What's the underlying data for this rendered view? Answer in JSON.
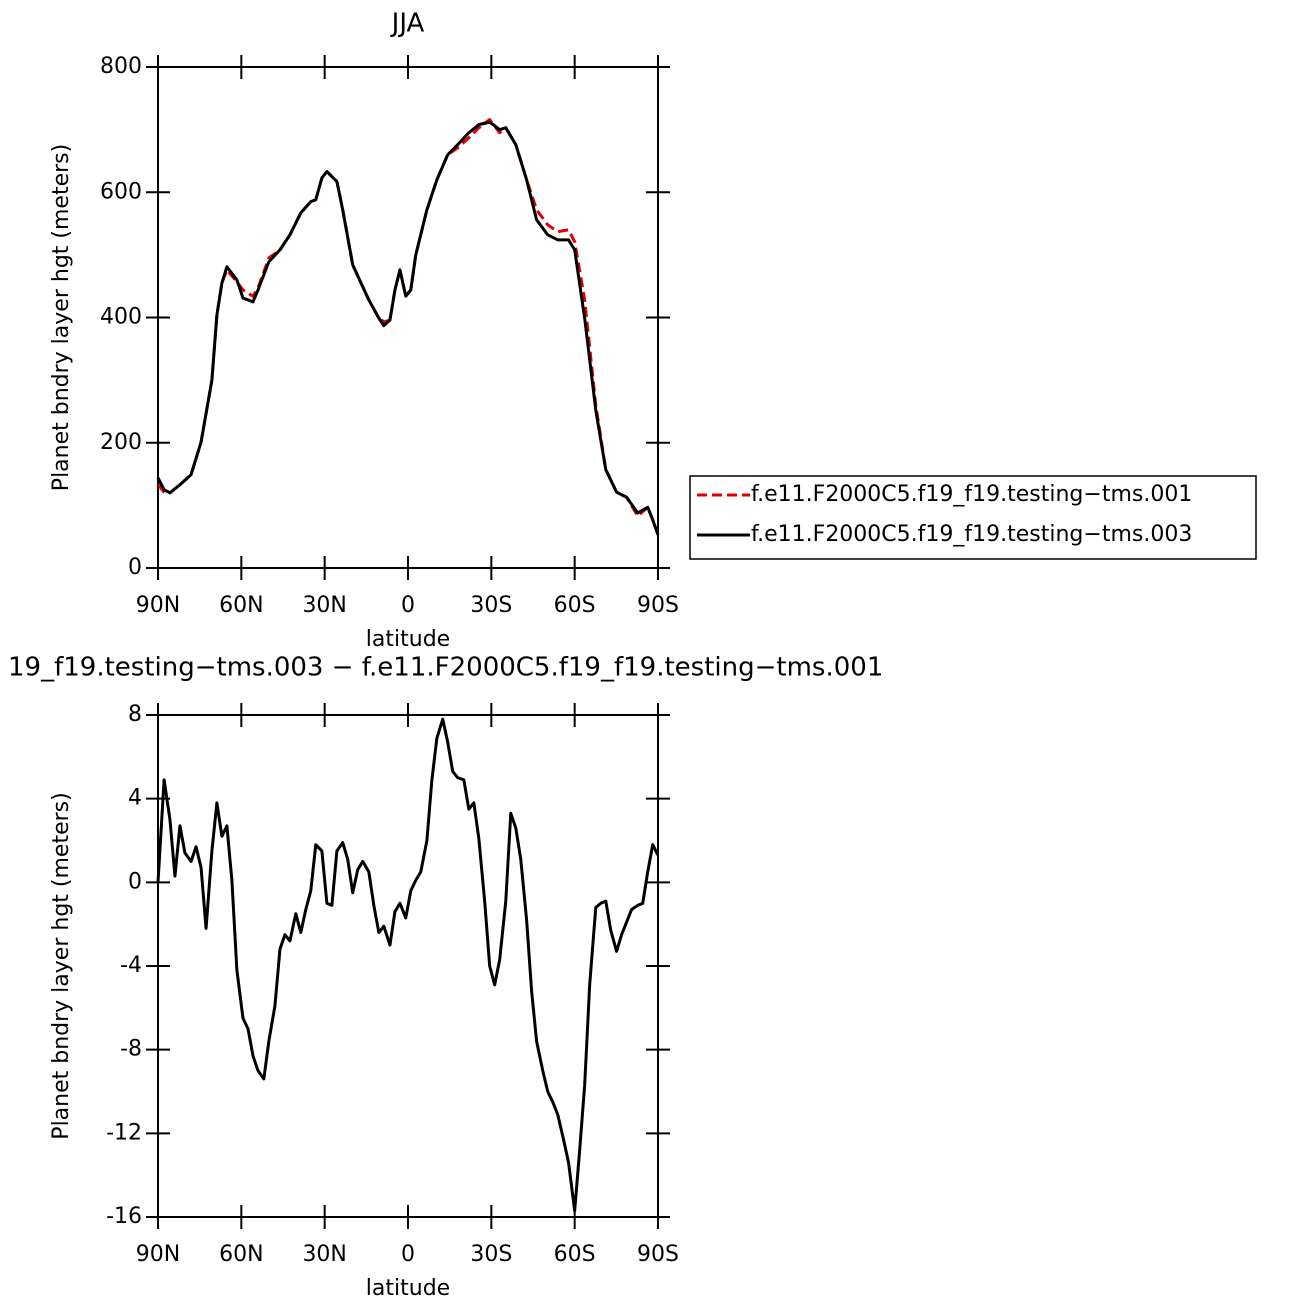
{
  "chart_data": [
    {
      "type": "line",
      "title": "JJA",
      "xlabel": "latitude",
      "ylabel": "Planet bndry layer hgt (meters)",
      "xlim": [
        90,
        -90
      ],
      "ylim": [
        0,
        800
      ],
      "xticks": [
        {
          "value": 90,
          "label": "90N"
        },
        {
          "value": 60,
          "label": "60N"
        },
        {
          "value": 30,
          "label": "30N"
        },
        0,
        {
          "value": -30,
          "label": "30S"
        },
        {
          "value": -60,
          "label": "60S"
        },
        {
          "value": -90,
          "label": "90S"
        }
      ],
      "yticks": [
        0,
        200,
        400,
        600,
        800
      ],
      "legend": "right",
      "x": [
        90,
        87.8,
        85.7,
        82.1,
        78.1,
        74.5,
        70.6,
        68.8,
        67,
        65.2,
        61.6,
        59.4,
        55.8,
        54,
        50.1,
        46.1,
        42.5,
        38.6,
        35,
        33.2,
        31,
        29.2,
        25.6,
        23.5,
        19.9,
        14.1,
        10.5,
        8.7,
        6.5,
        4.7,
        2.9,
        0.8,
        -1,
        -2.8,
        -6.8,
        -10.4,
        -14.3,
        -17.9,
        -21.9,
        -25.5,
        -29.4,
        -33,
        -35.2,
        -38.8,
        -42.7,
        -46.3,
        -50.3,
        -53.9,
        -57.8,
        -60,
        -63.6,
        -67.6,
        -71.2,
        -75.1,
        -78.7,
        -82.7,
        -86.3,
        -88.1,
        -90
      ],
      "series": [
        {
          "name": "f.e11.F2000C5.f19_f19.testing−tms.001",
          "color": "#e00000",
          "dash": true,
          "values": [
            133,
            121,
            120,
            133,
            149,
            201,
            300,
            404,
            455,
            476,
            457,
            444,
            434,
            447,
            495,
            508,
            532,
            567,
            585,
            588,
            623,
            633,
            617,
            572,
            484,
            428,
            399,
            393,
            396,
            444,
            476,
            434,
            444,
            500,
            572,
            620,
            660,
            671,
            687,
            703,
            716,
            695,
            703,
            676,
            620,
            572,
            548,
            537,
            540,
            521,
            428,
            260,
            157,
            121,
            113,
            83,
            97,
            77,
            53
          ]
        },
        {
          "name": "f.e11.F2000C5.f19_f19.testing−tms.003",
          "color": "#000000",
          "dash": false,
          "values": [
            144,
            125,
            120,
            133,
            149,
            201,
            300,
            404,
            455,
            481,
            460,
            431,
            425,
            444,
            489,
            508,
            532,
            567,
            585,
            588,
            623,
            633,
            617,
            572,
            484,
            428,
            399,
            387,
            396,
            444,
            476,
            434,
            444,
            500,
            572,
            620,
            660,
            676,
            695,
            708,
            712,
            700,
            703,
            676,
            620,
            556,
            532,
            524,
            524,
            508,
            399,
            252,
            157,
            121,
            113,
            88,
            97,
            77,
            53
          ]
        }
      ]
    },
    {
      "type": "line",
      "title": "19_f19.testing−tms.003 − f.e11.F2000C5.f19_f19.testing−tms.001",
      "xlabel": "latitude",
      "ylabel": "Planet bndry layer hgt (meters)",
      "xlim": [
        90,
        -90
      ],
      "ylim": [
        -16,
        8
      ],
      "xticks": [
        {
          "value": 90,
          "label": "90N"
        },
        {
          "value": 60,
          "label": "60N"
        },
        {
          "value": 30,
          "label": "30N"
        },
        0,
        {
          "value": -30,
          "label": "30S"
        },
        {
          "value": -60,
          "label": "60S"
        },
        {
          "value": -90,
          "label": "90S"
        }
      ],
      "yticks": [
        -16,
        -12,
        -8,
        -4,
        0,
        4,
        8
      ],
      "x": [
        90,
        87.8,
        85.7,
        83.9,
        82.1,
        80.3,
        78.1,
        76.3,
        74.5,
        72.7,
        70.6,
        68.8,
        67,
        65.2,
        63.4,
        61.6,
        59.4,
        57.6,
        55.8,
        54,
        51.9,
        50.1,
        47.9,
        46.1,
        44.3,
        42.5,
        40.4,
        38.6,
        36.8,
        35,
        33.2,
        31,
        29.2,
        27.4,
        25.6,
        23.5,
        21.7,
        19.9,
        18.1,
        16.3,
        14.1,
        12.3,
        10.5,
        8.7,
        6.5,
        4.7,
        2.9,
        0.8,
        -1,
        -2.8,
        -4.6,
        -6.8,
        -8.6,
        -10.4,
        -12.5,
        -14.3,
        -16.1,
        -17.9,
        -20.1,
        -21.9,
        -23.7,
        -25.5,
        -27.6,
        -29.4,
        -31.2,
        -33,
        -35.2,
        -37,
        -38.8,
        -40.6,
        -42.7,
        -44.5,
        -46.3,
        -48.5,
        -50.3,
        -52.1,
        -53.9,
        -56,
        -57.8,
        -60,
        -61.8,
        -63.6,
        -65.4,
        -67.6,
        -69.4,
        -71.2,
        -73,
        -75.1,
        -76.9,
        -78.7,
        -80.5,
        -82.7,
        -84.5,
        -86.3,
        -88.1,
        -90
      ],
      "series": [
        {
          "color": "#000000",
          "dash": false,
          "values": [
            0,
            4.9,
            3,
            0.3,
            2.7,
            1.4,
            1,
            1.7,
            0.7,
            -2.2,
            1.5,
            3.8,
            2.2,
            2.7,
            0.1,
            -4.2,
            -6.5,
            -7,
            -8.3,
            -9,
            -9.4,
            -7.6,
            -5.9,
            -3.2,
            -2.5,
            -2.8,
            -1.5,
            -2.4,
            -1.3,
            -0.4,
            1.8,
            1.5,
            -1,
            -1.1,
            1.5,
            1.9,
            1.1,
            -0.5,
            0.6,
            1,
            0.5,
            -1.1,
            -2.4,
            -2.1,
            -3,
            -1.4,
            -1,
            -1.7,
            -0.4,
            0.1,
            0.5,
            2,
            4.9,
            6.9,
            7.8,
            6.7,
            5.3,
            5,
            4.9,
            3.5,
            3.8,
            2.1,
            -0.9,
            -4,
            -4.9,
            -3.7,
            -0.9,
            3.3,
            2.6,
            1.1,
            -1.8,
            -5.2,
            -7.6,
            -9,
            -10,
            -10.5,
            -11.1,
            -12.3,
            -13.4,
            -15.7,
            -12.8,
            -9.7,
            -4.9,
            -1.2,
            -1,
            -0.9,
            -2.3,
            -3.3,
            -2.5,
            -1.9,
            -1.3,
            -1.1,
            -1,
            0.5,
            1.8,
            1.3
          ]
        }
      ]
    }
  ]
}
